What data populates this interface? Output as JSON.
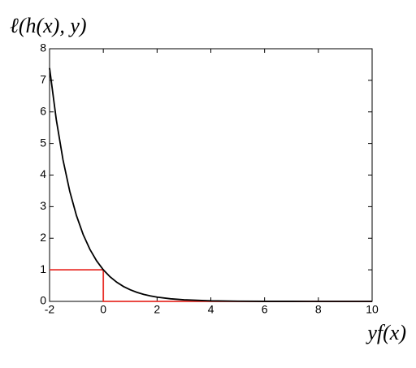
{
  "chart_data": {
    "type": "line",
    "y_label": "ℓ(h(x), y)",
    "x_label": "yf(x)",
    "series": [
      {
        "color": "#000000",
        "x": [
          -2,
          -1.75,
          -1.5,
          -1.25,
          -1,
          -0.75,
          -0.5,
          -0.25,
          0,
          0.25,
          0.5,
          0.75,
          1,
          1.25,
          1.5,
          1.75,
          2,
          2.5,
          3,
          4,
          5,
          6,
          7,
          8,
          10
        ],
        "values": [
          7.389,
          5.755,
          4.482,
          3.49,
          2.718,
          2.117,
          1.649,
          1.284,
          1,
          0.779,
          0.607,
          0.472,
          0.368,
          0.287,
          0.223,
          0.174,
          0.135,
          0.082,
          0.05,
          0.018,
          0.007,
          0.002,
          0.001,
          0,
          0
        ]
      },
      {
        "color": "#e8302a",
        "x": [
          -2,
          0,
          0,
          10
        ],
        "values": [
          1,
          1,
          0,
          0
        ]
      }
    ],
    "xlim": [
      -2,
      10
    ],
    "xticks": [
      -2,
      0,
      2,
      4,
      6,
      8,
      10
    ],
    "ylim": [
      0,
      8
    ],
    "yticks": [
      0,
      1,
      2,
      3,
      4,
      5,
      6,
      7,
      8
    ]
  }
}
